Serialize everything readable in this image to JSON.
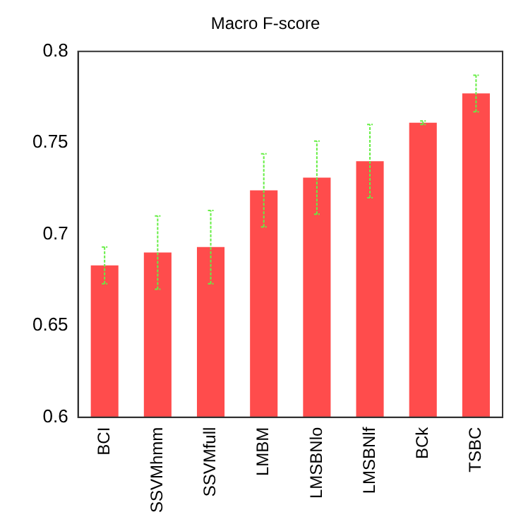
{
  "chart_data": {
    "type": "bar",
    "title": "Macro F-score",
    "categories": [
      "BCI",
      "SSVMhmm",
      "SSVMfull",
      "LMBM",
      "LMSBNlo",
      "LMSBNlf",
      "BCk",
      "TSBC"
    ],
    "values": [
      0.683,
      0.69,
      0.693,
      0.724,
      0.731,
      0.74,
      0.761,
      0.777
    ],
    "errors": [
      0.01,
      0.02,
      0.02,
      0.02,
      0.02,
      0.02,
      0.001,
      0.01
    ],
    "color": "#ff4c4c",
    "ylim": [
      0.6,
      0.8
    ],
    "yticks": [
      0.6,
      0.65,
      0.7,
      0.75,
      0.8
    ],
    "grid": false,
    "legend": false
  }
}
